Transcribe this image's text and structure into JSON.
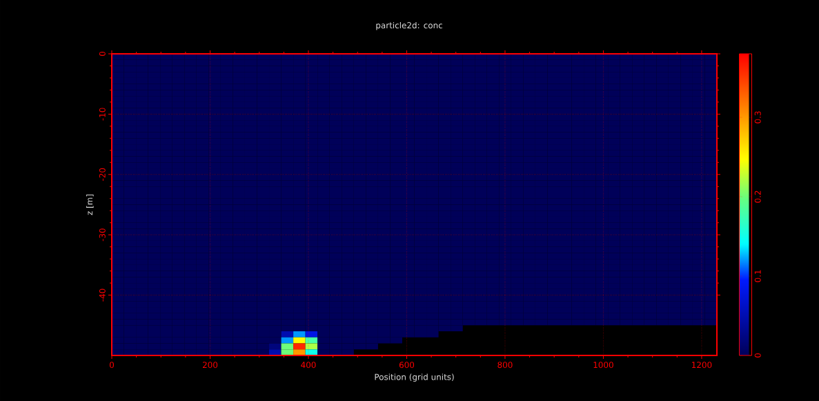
{
  "chart_data": {
    "type": "heatmap",
    "title": "particle2d: conc",
    "xlabel": "Position (grid units)",
    "ylabel": "z [m]",
    "xlim": [
      0,
      1231
    ],
    "xticks": [
      0,
      200,
      400,
      600,
      800,
      1000,
      1200
    ],
    "ylim": [
      -50,
      0
    ],
    "yticks": [
      0,
      -10,
      -20,
      -30,
      -40
    ],
    "clim": [
      0,
      0.38
    ],
    "cticks": [
      0,
      0.1,
      0.2,
      0.3
    ],
    "grid": true,
    "cells": [
      [
        0,
        0,
        0,
        0,
        0,
        0,
        0,
        0,
        0,
        0,
        0,
        0,
        0,
        0,
        0,
        0,
        0,
        0,
        0,
        0,
        0,
        0,
        0,
        0,
        0,
        0,
        0,
        0,
        0,
        0,
        0,
        0,
        0,
        0,
        0,
        0,
        0,
        0,
        0,
        0,
        0,
        0,
        0,
        0,
        0,
        0,
        0,
        0,
        0,
        0
      ],
      [
        0,
        0,
        0,
        0,
        0,
        0,
        0,
        0,
        0,
        0,
        0,
        0,
        0,
        0,
        0,
        0,
        0,
        0,
        0,
        0,
        0,
        0,
        0,
        0,
        0,
        0,
        0,
        0,
        0,
        0,
        0,
        0,
        0,
        0,
        0,
        0,
        0,
        0,
        0,
        0,
        0,
        0,
        0,
        0,
        0,
        0,
        0,
        0,
        0,
        0
      ],
      [
        0,
        0,
        0,
        0,
        0,
        0,
        0,
        0,
        0,
        0,
        0,
        0,
        0,
        0,
        0,
        0,
        0,
        0,
        0,
        0,
        0,
        0,
        0,
        0,
        0,
        0,
        0,
        0,
        0,
        0,
        0,
        0,
        0,
        0,
        0,
        0,
        0,
        0,
        0,
        0,
        0,
        0,
        0,
        0,
        0,
        0,
        0,
        0,
        0,
        0
      ],
      [
        0,
        0,
        0,
        0,
        0,
        0,
        0,
        0,
        0,
        0,
        0,
        0,
        0,
        0,
        0,
        0,
        0,
        0,
        0,
        0,
        0,
        0,
        0,
        0,
        0,
        0,
        0,
        0,
        0,
        0,
        0,
        0,
        0,
        0,
        0,
        0,
        0,
        0,
        0,
        0,
        0,
        0,
        0,
        0,
        0,
        0,
        0,
        0,
        0,
        0
      ],
      [
        0,
        0,
        0,
        0,
        0,
        0,
        0,
        0,
        0,
        0,
        0,
        0,
        0,
        0,
        0,
        0,
        0,
        0,
        0,
        0,
        0,
        0,
        0,
        0,
        0,
        0,
        0,
        0,
        0,
        0,
        0,
        0,
        0,
        0,
        0,
        0,
        0,
        0,
        0,
        0,
        0,
        0,
        0,
        0,
        0,
        0,
        0,
        0,
        0,
        0
      ],
      [
        0,
        0,
        0,
        0,
        0,
        0,
        0,
        0,
        0,
        0,
        0,
        0,
        0,
        0,
        0,
        0,
        0,
        0,
        0,
        0,
        0,
        0,
        0,
        0,
        0,
        0,
        0,
        0,
        0,
        0,
        0,
        0,
        0,
        0,
        0,
        0,
        0,
        0,
        0,
        0,
        0,
        0,
        0,
        0,
        0,
        0,
        0,
        0,
        0,
        0
      ],
      [
        0,
        0,
        0,
        0,
        0,
        0,
        0,
        0,
        0,
        0,
        0,
        0,
        0,
        0,
        0,
        0,
        0,
        0,
        0,
        0,
        0,
        0,
        0,
        0,
        0,
        0,
        0,
        0,
        0,
        0,
        0,
        0,
        0,
        0,
        0,
        0,
        0,
        0,
        0,
        0,
        0,
        0,
        0,
        0,
        0,
        0,
        0,
        0,
        0,
        0
      ],
      [
        0,
        0,
        0,
        0,
        0,
        0,
        0,
        0,
        0,
        0,
        0,
        0,
        0,
        0,
        0,
        0,
        0,
        0,
        0,
        0,
        0,
        0,
        0,
        0,
        0,
        0,
        0,
        0,
        0,
        0,
        0,
        0,
        0,
        0,
        0,
        0,
        0,
        0,
        0,
        0,
        0,
        0,
        0,
        0,
        0,
        0,
        0,
        0,
        0,
        0
      ],
      [
        0,
        0,
        0,
        0,
        0,
        0,
        0,
        0,
        0,
        0,
        0,
        0,
        0,
        0,
        0,
        0,
        0,
        0,
        0,
        0,
        0,
        0,
        0,
        0,
        0,
        0,
        0,
        0,
        0,
        0,
        0,
        0,
        0,
        0,
        0,
        0,
        0,
        0,
        0,
        0,
        0,
        0,
        0,
        0,
        0,
        0,
        0,
        0,
        0,
        0
      ],
      [
        0,
        0,
        0,
        0,
        0,
        0,
        0,
        0,
        0,
        0,
        0,
        0,
        0,
        0,
        0,
        0,
        0,
        0,
        0,
        0,
        0,
        0,
        0,
        0,
        0,
        0,
        0,
        0,
        0,
        0,
        0,
        0,
        0,
        0,
        0,
        0,
        0,
        0,
        0,
        0,
        0,
        0,
        0,
        0,
        0,
        0,
        0,
        0,
        0,
        0
      ],
      [
        0,
        0,
        0,
        0,
        0,
        0,
        0,
        0,
        0,
        0,
        0,
        0,
        0,
        0,
        0,
        0,
        0,
        0,
        0,
        0,
        0,
        0,
        0,
        0,
        0,
        0,
        0,
        0,
        0,
        0,
        0,
        0,
        0,
        0,
        0,
        0,
        0,
        0,
        0,
        0,
        0,
        0,
        0,
        0,
        0,
        0,
        0,
        0,
        0,
        0
      ],
      [
        0,
        0,
        0,
        0,
        0,
        0,
        0,
        0,
        0,
        0,
        0,
        0,
        0,
        0,
        0,
        0,
        0,
        0,
        0,
        0,
        0,
        0,
        0,
        0,
        0,
        0,
        0,
        0,
        0,
        0,
        0,
        0,
        0,
        0,
        0,
        0,
        0,
        0,
        0,
        0,
        0,
        0,
        0,
        0,
        0,
        0,
        0,
        0,
        0,
        0
      ],
      [
        0,
        0,
        0,
        0,
        0,
        0,
        0,
        0,
        0,
        0,
        0,
        0,
        0,
        0,
        0,
        0,
        0,
        0,
        0,
        0,
        0,
        0,
        0,
        0,
        0,
        0,
        0,
        0,
        0,
        0,
        0,
        0,
        0,
        0,
        0,
        0,
        0,
        0,
        0,
        0,
        0,
        0,
        0,
        0,
        0,
        0,
        0,
        0,
        0,
        0
      ],
      [
        0,
        0,
        0,
        0,
        0,
        0,
        0,
        0,
        0,
        0,
        0,
        0,
        0,
        0,
        0,
        0,
        0,
        0,
        0,
        0,
        0,
        0,
        0,
        0,
        0,
        0,
        0,
        0,
        0,
        0,
        0,
        0,
        0,
        0,
        0,
        0,
        0,
        0,
        0,
        0,
        0,
        0,
        0,
        0,
        0,
        0,
        0,
        0,
        0,
        0
      ],
      [
        0,
        0,
        0,
        0,
        0,
        0,
        0,
        0,
        0,
        0,
        0,
        0,
        0,
        0,
        0,
        0,
        0,
        0,
        0,
        0,
        0,
        0,
        0,
        0,
        0,
        0,
        0,
        0,
        0,
        0,
        0,
        0,
        0,
        0,
        0,
        0,
        0,
        0,
        0,
        0,
        0,
        0,
        0,
        0,
        0,
        0,
        0,
        0,
        0,
        0
      ],
      [
        0,
        0,
        0,
        0,
        0,
        0,
        0,
        0,
        0,
        0,
        0,
        0,
        0,
        0,
        0,
        0,
        0,
        0,
        0,
        0,
        0,
        0,
        0,
        0,
        0,
        0,
        0,
        0,
        0,
        0,
        0,
        0,
        0,
        0,
        0,
        0,
        0,
        0,
        0,
        0,
        0,
        0,
        0,
        0,
        0,
        0,
        0,
        0,
        0,
        0
      ],
      [
        0,
        0,
        0,
        0,
        0,
        0,
        0,
        0,
        0,
        0,
        0,
        0,
        0,
        0,
        0,
        0,
        0,
        0,
        0,
        0,
        0,
        0,
        0,
        0,
        0,
        0,
        0,
        0,
        0,
        0,
        0,
        0,
        0,
        0,
        0,
        0,
        0,
        0,
        0,
        0,
        0,
        0,
        0,
        0,
        0,
        0,
        0,
        0,
        0,
        0
      ],
      [
        0,
        0,
        0,
        0,
        0,
        0,
        0,
        0,
        0,
        0,
        0,
        0,
        0,
        0,
        0,
        0,
        0,
        0,
        0,
        0,
        0,
        0,
        0,
        0,
        0,
        0,
        0,
        0,
        0,
        0,
        0,
        0,
        0,
        0,
        0,
        0,
        0,
        0,
        0,
        0,
        0,
        0,
        0,
        0,
        0,
        0,
        0,
        0,
        0,
        0
      ],
      [
        0,
        0,
        0,
        0,
        0,
        0,
        0,
        0,
        0,
        0,
        0,
        0,
        0,
        0,
        0,
        0,
        0,
        0,
        0,
        0,
        0,
        0,
        0,
        0,
        0,
        0,
        0,
        0,
        0,
        0,
        0,
        0,
        0,
        0,
        0,
        0,
        0,
        0,
        0,
        0,
        0,
        0,
        0,
        0,
        0,
        0,
        0,
        0,
        0,
        0
      ],
      [
        0,
        0,
        0,
        0,
        0,
        0,
        0,
        0,
        0,
        0,
        0,
        0,
        0,
        0,
        0,
        0,
        0,
        0,
        0,
        0,
        0,
        0,
        0,
        0,
        0,
        0,
        0,
        0,
        0,
        0,
        0,
        0,
        0,
        0,
        0,
        0,
        0,
        0,
        0,
        0,
        0,
        0,
        0,
        0,
        0,
        0,
        0,
        0,
        0,
        0
      ],
      [
        0,
        0,
        0,
        0,
        0,
        0,
        0,
        0,
        0,
        0,
        0,
        0,
        0,
        0,
        0,
        0,
        0,
        0,
        0,
        0,
        0,
        0,
        0,
        0,
        0,
        0,
        0,
        0,
        0,
        0,
        0,
        0,
        0,
        0,
        0,
        0,
        0,
        0,
        0,
        0,
        0,
        0,
        0,
        0,
        0,
        0,
        0,
        0,
        0,
        0
      ],
      [
        0,
        0,
        0,
        0,
        0,
        0,
        0,
        0,
        0,
        0,
        0,
        0,
        0,
        0,
        0,
        0,
        0,
        0,
        0,
        0,
        0,
        0,
        0,
        0,
        0,
        0,
        0,
        0,
        0,
        0,
        0,
        0,
        0,
        0,
        0,
        0,
        0,
        0,
        0,
        0,
        0,
        0,
        0,
        0,
        0,
        0,
        0,
        0,
        0,
        0
      ],
      [
        0,
        0,
        0,
        0,
        0,
        0,
        0,
        0,
        0,
        0,
        0,
        0,
        0,
        0,
        0,
        0,
        0,
        0,
        0,
        0,
        0,
        0,
        0,
        0,
        0,
        0,
        0,
        0,
        0,
        0,
        0,
        0,
        0,
        0,
        0,
        0,
        0,
        0,
        0,
        0,
        0,
        0,
        0,
        0,
        0,
        0,
        0,
        0,
        0,
        0
      ],
      [
        0,
        0,
        0,
        0,
        0,
        0,
        0,
        0,
        0,
        0,
        0,
        0,
        0,
        0,
        0,
        0,
        0,
        0,
        0,
        0,
        0,
        0,
        0,
        0,
        0,
        0,
        0,
        0,
        0,
        0,
        0,
        0,
        0,
        0,
        0,
        0,
        0,
        0,
        0,
        0,
        0,
        0,
        0,
        0,
        0,
        0,
        0,
        0,
        0,
        0
      ],
      [
        0,
        0,
        0,
        0,
        0,
        0,
        0,
        0,
        0,
        0,
        0,
        0,
        0,
        0,
        0,
        0,
        0,
        0,
        0,
        0,
        0,
        0,
        0,
        0,
        0,
        0,
        0,
        0,
        0,
        0,
        0,
        0,
        0,
        0,
        0,
        0,
        0,
        0,
        0,
        0,
        0,
        0,
        0,
        0,
        0,
        0,
        0,
        0,
        0,
        0
      ],
      [
        0,
        0,
        0,
        0,
        0,
        0,
        0,
        0,
        0,
        0,
        0,
        0,
        0,
        0,
        0,
        0,
        0,
        0,
        0,
        0,
        0,
        0,
        0,
        0,
        0,
        0,
        0,
        0,
        0,
        0,
        0,
        0,
        0,
        0,
        0,
        0,
        0,
        0,
        0,
        0,
        0,
        0,
        0,
        0,
        0,
        0,
        0,
        0,
        0,
        0
      ],
      [
        0,
        0,
        0,
        0,
        0,
        0,
        0,
        0,
        0,
        0,
        0,
        0,
        0,
        0,
        0,
        0,
        0,
        0,
        0,
        0,
        0,
        0,
        0,
        0,
        0,
        0,
        0,
        0,
        0,
        0,
        0,
        0,
        0,
        0,
        0,
        0,
        0,
        0,
        0,
        0,
        0,
        0,
        0,
        0,
        0,
        0,
        0,
        0,
        0,
        0
      ],
      [
        0,
        0,
        0,
        0,
        0,
        0,
        0,
        0,
        0,
        0,
        0,
        0,
        0,
        0,
        0,
        0,
        0,
        0,
        0,
        0,
        0,
        0,
        0,
        0,
        0,
        0,
        0,
        0,
        0,
        0,
        0,
        0,
        0,
        0,
        0,
        0,
        0,
        0,
        0,
        0,
        0,
        0,
        0,
        0,
        0,
        0,
        0,
        0,
        0,
        0
      ],
      [
        0,
        0,
        0,
        0,
        0,
        0,
        0,
        0,
        0,
        0,
        0,
        0,
        0,
        0,
        0,
        0,
        0,
        0,
        0,
        0,
        0,
        0,
        0,
        0,
        0,
        0,
        0,
        0,
        0,
        0,
        0,
        0,
        0,
        0,
        0,
        0,
        0,
        0,
        0,
        0,
        0,
        0,
        0,
        0,
        0,
        0,
        0,
        0,
        0,
        0
      ],
      [
        0,
        0,
        0,
        0,
        0,
        0,
        0,
        0,
        0,
        0,
        0,
        0,
        0,
        0,
        0,
        0,
        0,
        0,
        0,
        0,
        0,
        0,
        0,
        0,
        0,
        0,
        0,
        0,
        0,
        0,
        0,
        0,
        0,
        0,
        0,
        0,
        0,
        0,
        0,
        0,
        0,
        0,
        0,
        0,
        0,
        0,
        0,
        0,
        0,
        0
      ],
      [
        0,
        0,
        0,
        0,
        0,
        0,
        0,
        0,
        0,
        0,
        0,
        0,
        0,
        0,
        0,
        0,
        0,
        0,
        0,
        0,
        0,
        0,
        0,
        0,
        0,
        0,
        0,
        0,
        0,
        0,
        0,
        0,
        0,
        0,
        0,
        0,
        0,
        0,
        0,
        0,
        0,
        0,
        0,
        0,
        0,
        0,
        0,
        0,
        0,
        0
      ],
      [
        0,
        0,
        0,
        0,
        0,
        0,
        0,
        0,
        0,
        0,
        0,
        0,
        0,
        0,
        0,
        0,
        0,
        0,
        0,
        0,
        0,
        0,
        0,
        0,
        0,
        0,
        0,
        0,
        0,
        0,
        0,
        0,
        0,
        0,
        0,
        0,
        0,
        0,
        0,
        0,
        0,
        0,
        0,
        0,
        0,
        0,
        0,
        0,
        0,
        0
      ],
      [
        0,
        0,
        0,
        0,
        0,
        0,
        0,
        0,
        0,
        0,
        0,
        0,
        0,
        0,
        0,
        0,
        0,
        0,
        0,
        0,
        0,
        0,
        0,
        0,
        0,
        0,
        0,
        0,
        0,
        0,
        0,
        0,
        0,
        0,
        0,
        0,
        0,
        0,
        0,
        0,
        0,
        0,
        0,
        0,
        0,
        0,
        0,
        0,
        0,
        0
      ],
      [
        0,
        0,
        0,
        0,
        0,
        0,
        0,
        0,
        0,
        0,
        0,
        0,
        0,
        0,
        0,
        0,
        0,
        0,
        0,
        0,
        0,
        0,
        0,
        0,
        0,
        0,
        0,
        0,
        0,
        0,
        0,
        0,
        0,
        0,
        0,
        0,
        0,
        0,
        0,
        0,
        0,
        0,
        0,
        0,
        0,
        0,
        0,
        0,
        0,
        0
      ],
      [
        0,
        0,
        0,
        0,
        0,
        0,
        0,
        0,
        0,
        0,
        0,
        0,
        0,
        0,
        0,
        0,
        0,
        0,
        0,
        0,
        0,
        0,
        0,
        0,
        0,
        0,
        0,
        0,
        0,
        0,
        0,
        0,
        0,
        0,
        0,
        0,
        0,
        0,
        0,
        0,
        0,
        0,
        0,
        0,
        0,
        0,
        0,
        0,
        0,
        0
      ],
      [
        0,
        0,
        0,
        0,
        0,
        0,
        0,
        0,
        0,
        0,
        0,
        0,
        0,
        0,
        0,
        0,
        0,
        0,
        0,
        0,
        0,
        0,
        0,
        0,
        0,
        0,
        0,
        0,
        0,
        0,
        0,
        0,
        0,
        0,
        0,
        0,
        0,
        0,
        0,
        0,
        0,
        0,
        0,
        0,
        0,
        0,
        0,
        0,
        0,
        0
      ],
      [
        0,
        0,
        0,
        0,
        0,
        0,
        0,
        0,
        0,
        0,
        0,
        0,
        0,
        0,
        0,
        0,
        0,
        0,
        0,
        0,
        0,
        0,
        0,
        0,
        0,
        0,
        0,
        0,
        0,
        0,
        0,
        0,
        0,
        0,
        0,
        0,
        0,
        0,
        0,
        0,
        0,
        0,
        0,
        0,
        0,
        0,
        0,
        0,
        0,
        0
      ],
      [
        0,
        0,
        0,
        0,
        0,
        0,
        0,
        0,
        0,
        0,
        0,
        0,
        0,
        0,
        0,
        0,
        0,
        0,
        0,
        0,
        0,
        0,
        0,
        0,
        0,
        0,
        0,
        0,
        0,
        0,
        0,
        0,
        0,
        0,
        0,
        0,
        0,
        0,
        0,
        0,
        0,
        0,
        0,
        0,
        0,
        0,
        0,
        0,
        0,
        0
      ],
      [
        0,
        0,
        0,
        0,
        0,
        0,
        0,
        0,
        0,
        0,
        0,
        0,
        0,
        0,
        0,
        0,
        0,
        0,
        0,
        0,
        0,
        0,
        0,
        0,
        0,
        0,
        0,
        0,
        0,
        0,
        0,
        0,
        0,
        0,
        0,
        0,
        0,
        0,
        0,
        0,
        0,
        0,
        0,
        0,
        0,
        0,
        0,
        0,
        0,
        0
      ],
      [
        0,
        0,
        0,
        0,
        0,
        0,
        0,
        0,
        0,
        0,
        0,
        0,
        0,
        0,
        0,
        0,
        0,
        0,
        0,
        0,
        0,
        0,
        0,
        0,
        0,
        0,
        0,
        0,
        0,
        0,
        0,
        0,
        0,
        0,
        0,
        0,
        0,
        0,
        0,
        0,
        0,
        0,
        0,
        0,
        0,
        0,
        0,
        0,
        0,
        0
      ],
      [
        0,
        0,
        0,
        0,
        0,
        0,
        0,
        0,
        0,
        0,
        0,
        0,
        0,
        0,
        0,
        0,
        0,
        0,
        0,
        0,
        0,
        0,
        0,
        0,
        0,
        0,
        0,
        0,
        0,
        0,
        0,
        0,
        0,
        0,
        0,
        0,
        0,
        0,
        0,
        0,
        0,
        0,
        0,
        0,
        0,
        0,
        0,
        0,
        0,
        0
      ],
      [
        0,
        0,
        0,
        0,
        0,
        0,
        0,
        0,
        0,
        0,
        0,
        0,
        0,
        0,
        0,
        0,
        0,
        0,
        0,
        0,
        0,
        0,
        0,
        0,
        0,
        0,
        0,
        0,
        0,
        0,
        0,
        0,
        0,
        0,
        0,
        0,
        0,
        0,
        0,
        0,
        0,
        0,
        0,
        0,
        0,
        0,
        0,
        0,
        0,
        0
      ],
      [
        0,
        0,
        0,
        0,
        0,
        0,
        0,
        0,
        0,
        0,
        0,
        0,
        0,
        0,
        0,
        0,
        0,
        0,
        0,
        0,
        0,
        0,
        0,
        0,
        0,
        0,
        0,
        0,
        0,
        0,
        0,
        0,
        0,
        0,
        0,
        0,
        0,
        0,
        0,
        0,
        0,
        0,
        0,
        0,
        0,
        0,
        0,
        0,
        0,
        0
      ],
      [
        0,
        0,
        0,
        0,
        0,
        0,
        0,
        0,
        0,
        0,
        0,
        0,
        0,
        0,
        0,
        0,
        0,
        0,
        0,
        0,
        0,
        0,
        0,
        0,
        0,
        0,
        0,
        0,
        0,
        0,
        0,
        0,
        0,
        0,
        0,
        0,
        0,
        0,
        0,
        0,
        0,
        0,
        0,
        0,
        0,
        0,
        0,
        0,
        0,
        0
      ],
      [
        0,
        0,
        0,
        0,
        0,
        0,
        0,
        0,
        0,
        0,
        0,
        0,
        0,
        0,
        0,
        0,
        0,
        0,
        0,
        0,
        0,
        0,
        0,
        0,
        0,
        0,
        0,
        0,
        0,
        0,
        0,
        0,
        0,
        0,
        0,
        0,
        0,
        0,
        0,
        0,
        0,
        0,
        0,
        0,
        0,
        0,
        0,
        0,
        0,
        0
      ],
      [
        0,
        0,
        0,
        0,
        0,
        0,
        0,
        0,
        0,
        0,
        0,
        0,
        0,
        0,
        0,
        0,
        0,
        0,
        0,
        0,
        0,
        0,
        0,
        0,
        0,
        0,
        0,
        0,
        0,
        null,
        null,
        null,
        null,
        null,
        null,
        null,
        null,
        null,
        null,
        null,
        null,
        null,
        null,
        null,
        null,
        null,
        null,
        null,
        null,
        null
      ],
      [
        0,
        0,
        0,
        0,
        0,
        0,
        0,
        0,
        0,
        0,
        0,
        0,
        0,
        0,
        0.05,
        0.12,
        0.08,
        0,
        0,
        0,
        0,
        0,
        0,
        0,
        0,
        0,
        0,
        null,
        null,
        null,
        null,
        null,
        null,
        null,
        null,
        null,
        null,
        null,
        null,
        null,
        null,
        null,
        null,
        null,
        null,
        null,
        null,
        null,
        null,
        null
      ],
      [
        0,
        0,
        0,
        0,
        0,
        0,
        0,
        0,
        0,
        0,
        0,
        0,
        0,
        0,
        0.12,
        0.25,
        0.18,
        0,
        0,
        0,
        0,
        0,
        0,
        0,
        null,
        null,
        null,
        null,
        null,
        null,
        null,
        null,
        null,
        null,
        null,
        null,
        null,
        null,
        null,
        null,
        null,
        null,
        null,
        null,
        null,
        null,
        null,
        null,
        null,
        null
      ],
      [
        0,
        0,
        0,
        0,
        0,
        0,
        0,
        0,
        0,
        0,
        0,
        0,
        0,
        0.02,
        0.2,
        0.36,
        0.22,
        0,
        0,
        0,
        0,
        0,
        null,
        null,
        null,
        null,
        null,
        null,
        null,
        null,
        null,
        null,
        null,
        null,
        null,
        null,
        null,
        null,
        null,
        null,
        null,
        null,
        null,
        null,
        null,
        null,
        null,
        null,
        null,
        null
      ],
      [
        0,
        0,
        0,
        0,
        0,
        0,
        0,
        0,
        0,
        0,
        0,
        0,
        0,
        0.05,
        0.2,
        0.3,
        0.15,
        0,
        0,
        0,
        null,
        null,
        null,
        null,
        null,
        null,
        null,
        null,
        null,
        null,
        null,
        null,
        null,
        null,
        null,
        null,
        null,
        null,
        null,
        null,
        null,
        null,
        null,
        null,
        null,
        null,
        null,
        null,
        null,
        null
      ]
    ]
  }
}
